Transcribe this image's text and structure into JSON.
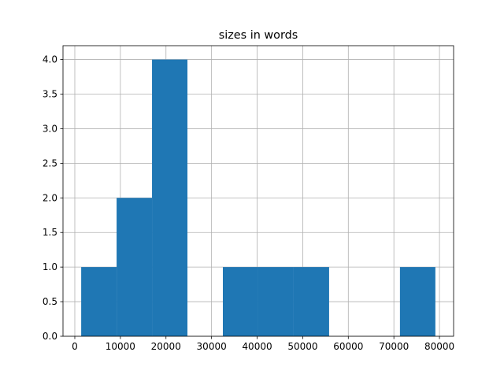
{
  "chart_data": {
    "type": "histogram",
    "title": "sizes in words",
    "bins": [
      1400,
      9170,
      16940,
      24710,
      32480,
      40250,
      48020,
      55790,
      63560,
      71330,
      79100
    ],
    "counts": [
      1,
      2,
      4,
      0,
      1,
      1,
      1,
      0,
      0,
      1
    ],
    "color": "#1f77b4",
    "xlim": [
      -2590,
      83100
    ],
    "xticks": [
      0,
      10000,
      20000,
      30000,
      40000,
      50000,
      60000,
      70000,
      80000
    ],
    "ylim": [
      0,
      4.2
    ],
    "yticks": [
      {
        "value": 0,
        "label": "0.0"
      },
      0.5,
      {
        "value": 1,
        "label": "1.0"
      },
      1.5,
      {
        "value": 2,
        "label": "2.0"
      },
      2.5,
      {
        "value": 3,
        "label": "3.0"
      },
      3.5,
      {
        "value": 4,
        "label": "4.0"
      }
    ],
    "grid": true
  }
}
